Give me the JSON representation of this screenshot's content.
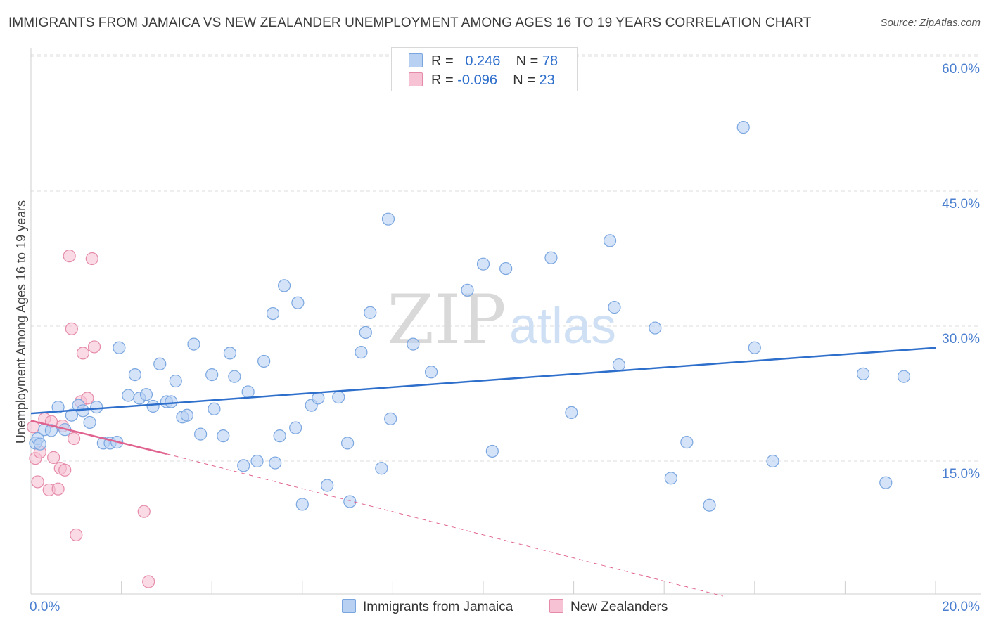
{
  "header": {
    "title": "IMMIGRANTS FROM JAMAICA VS NEW ZEALANDER UNEMPLOYMENT AMONG AGES 16 TO 19 YEARS CORRELATION CHART",
    "source": "Source: ZipAtlas.com"
  },
  "watermark": {
    "zip": "ZIP",
    "atlas": "atlas"
  },
  "legend": {
    "rows": [
      {
        "r_label": "R =",
        "r_value": "0.246",
        "n_label": "N =",
        "n_value": "78"
      },
      {
        "r_label": "R =",
        "r_value": "-0.096",
        "n_label": "N =",
        "n_value": "23"
      }
    ]
  },
  "bottom_legend": {
    "series1": "Immigrants from Jamaica",
    "series2": "New Zealanders"
  },
  "colors": {
    "blue_fill": "#b8d1f3",
    "blue_stroke": "#7aa6e0",
    "blue_line": "#2f6fcc",
    "pink_fill": "#f7c2d3",
    "pink_stroke": "#e58ba8",
    "pink_line": "#e0628f",
    "grid": "#dcdcdc",
    "tick_label": "#4a7fd0"
  },
  "chart_data": {
    "type": "scatter",
    "title": "IMMIGRANTS FROM JAMAICA VS NEW ZEALANDER UNEMPLOYMENT AMONG AGES 16 TO 19 YEARS CORRELATION CHART",
    "xlabel": "",
    "ylabel": "Unemployment Among Ages 16 to 19 years",
    "xlim": [
      0,
      20
    ],
    "ylim": [
      0,
      60
    ],
    "x_tick_labels": [
      "0.0%",
      "20.0%"
    ],
    "y_ticks": [
      15,
      30,
      45,
      60
    ],
    "y_tick_labels": [
      "15.0%",
      "30.0%",
      "45.0%",
      "60.0%"
    ],
    "series": [
      {
        "name": "Immigrants from Jamaica",
        "r": 0.246,
        "n": 78,
        "trend": {
          "x0": 0,
          "y0": 20.3,
          "x1": 20,
          "y1": 27.6
        },
        "points": [
          [
            0.1,
            17.0
          ],
          [
            0.15,
            17.5
          ],
          [
            0.2,
            16.9
          ],
          [
            0.3,
            18.5
          ],
          [
            0.45,
            18.4
          ],
          [
            0.6,
            21.0
          ],
          [
            0.75,
            18.5
          ],
          [
            0.9,
            20.1
          ],
          [
            1.05,
            21.2
          ],
          [
            1.15,
            20.6
          ],
          [
            1.3,
            19.3
          ],
          [
            1.45,
            21.0
          ],
          [
            1.6,
            17.0
          ],
          [
            1.75,
            17.0
          ],
          [
            1.9,
            17.1
          ],
          [
            1.95,
            27.6
          ],
          [
            2.15,
            22.3
          ],
          [
            2.3,
            24.6
          ],
          [
            2.4,
            22.0
          ],
          [
            2.55,
            22.4
          ],
          [
            2.7,
            21.1
          ],
          [
            2.85,
            25.8
          ],
          [
            3.0,
            21.6
          ],
          [
            3.1,
            21.6
          ],
          [
            3.2,
            23.9
          ],
          [
            3.35,
            19.9
          ],
          [
            3.45,
            20.1
          ],
          [
            3.6,
            28.0
          ],
          [
            3.75,
            18.0
          ],
          [
            4.0,
            24.6
          ],
          [
            4.05,
            20.8
          ],
          [
            4.25,
            17.8
          ],
          [
            4.4,
            27.0
          ],
          [
            4.5,
            24.4
          ],
          [
            4.7,
            14.5
          ],
          [
            4.8,
            22.7
          ],
          [
            5.0,
            15.0
          ],
          [
            5.15,
            26.1
          ],
          [
            5.35,
            31.4
          ],
          [
            5.4,
            14.8
          ],
          [
            5.5,
            17.8
          ],
          [
            5.6,
            34.5
          ],
          [
            5.85,
            18.7
          ],
          [
            5.9,
            32.6
          ],
          [
            6.0,
            10.2
          ],
          [
            6.2,
            21.2
          ],
          [
            6.35,
            22.0
          ],
          [
            6.55,
            12.3
          ],
          [
            6.8,
            22.1
          ],
          [
            7.0,
            17.0
          ],
          [
            7.05,
            10.5
          ],
          [
            7.3,
            27.1
          ],
          [
            7.4,
            29.3
          ],
          [
            7.5,
            31.5
          ],
          [
            7.75,
            14.2
          ],
          [
            7.9,
            41.9
          ],
          [
            7.95,
            19.7
          ],
          [
            8.45,
            28.0
          ],
          [
            8.85,
            24.9
          ],
          [
            9.65,
            34.0
          ],
          [
            10.0,
            36.9
          ],
          [
            10.2,
            16.1
          ],
          [
            10.5,
            36.4
          ],
          [
            11.5,
            37.6
          ],
          [
            11.95,
            20.4
          ],
          [
            12.8,
            39.5
          ],
          [
            12.9,
            32.1
          ],
          [
            13.0,
            25.7
          ],
          [
            13.8,
            29.8
          ],
          [
            14.15,
            13.1
          ],
          [
            14.5,
            17.1
          ],
          [
            15.0,
            10.1
          ],
          [
            15.75,
            52.1
          ],
          [
            16.0,
            27.6
          ],
          [
            16.4,
            15.0
          ],
          [
            18.4,
            24.7
          ],
          [
            18.9,
            12.6
          ],
          [
            19.3,
            24.4
          ]
        ]
      },
      {
        "name": "New Zealanders",
        "r": -0.096,
        "n": 23,
        "trend": {
          "x0": 0,
          "y0": 19.5,
          "x1": 3.0,
          "y1": 15.8
        },
        "trend_dashed": {
          "x0": 3.0,
          "y0": 15.8,
          "x1": 15.3,
          "y1": 0
        },
        "points": [
          [
            0.05,
            18.8
          ],
          [
            0.1,
            15.3
          ],
          [
            0.15,
            12.7
          ],
          [
            0.2,
            16.0
          ],
          [
            0.3,
            19.7
          ],
          [
            0.4,
            11.8
          ],
          [
            0.45,
            19.4
          ],
          [
            0.6,
            11.9
          ],
          [
            0.65,
            14.2
          ],
          [
            0.7,
            18.9
          ],
          [
            0.75,
            14.0
          ],
          [
            0.85,
            37.8
          ],
          [
            0.9,
            29.7
          ],
          [
            0.95,
            17.5
          ],
          [
            1.0,
            6.8
          ],
          [
            1.1,
            21.6
          ],
          [
            1.15,
            27.0
          ],
          [
            1.25,
            22.0
          ],
          [
            1.35,
            37.5
          ],
          [
            1.4,
            27.7
          ],
          [
            2.5,
            9.4
          ],
          [
            2.6,
            1.6
          ],
          [
            0.5,
            15.4
          ]
        ]
      }
    ]
  }
}
